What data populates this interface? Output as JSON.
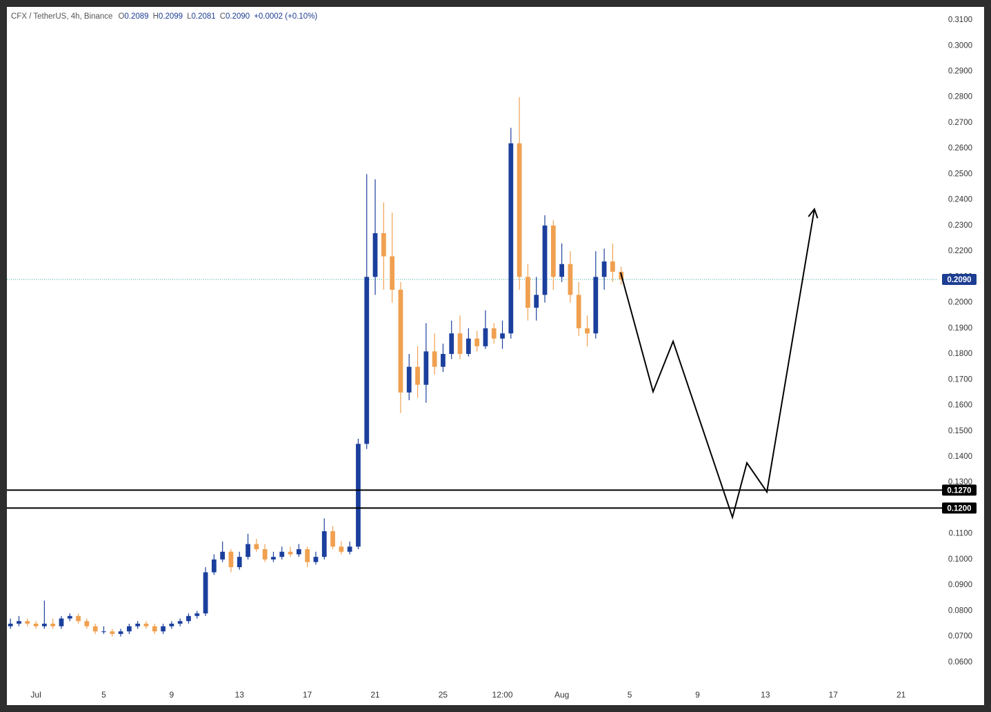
{
  "chart_data": {
    "type": "candlestick",
    "header": {
      "symbol": "CFX / TetherUS, 4h, Binance",
      "fields": [
        {
          "key": "O",
          "value": "0.2089"
        },
        {
          "key": "H",
          "value": "0.2099"
        },
        {
          "key": "L",
          "value": "0.2081"
        },
        {
          "key": "C",
          "value": "0.2090"
        }
      ],
      "change": "+0.0002 (+0.10%)"
    },
    "up_color": "#1b3f9c",
    "down_color": "#f0a050",
    "x": [
      -0.5,
      0,
      0.5,
      1,
      1.5,
      2,
      2.5,
      3,
      3.5,
      4,
      4.5,
      5,
      5.5,
      6,
      6.5,
      7,
      7.5,
      8,
      8.5,
      9,
      9.5,
      10,
      10.5,
      11,
      11.5,
      12,
      12.5,
      13,
      13.5,
      14,
      14.5,
      15,
      15.5,
      16,
      16.5,
      17,
      17.5,
      18,
      18.5,
      19,
      19.5,
      20,
      20.5,
      21,
      21.5,
      22,
      22.5,
      23,
      23.5,
      24,
      24.5,
      25,
      25.5,
      26,
      26.5,
      27,
      27.5,
      28,
      28.5,
      29,
      29.5,
      30,
      30.5,
      31,
      31.5,
      32,
      32.5,
      33,
      33.5,
      34,
      34.5,
      35,
      35.5
    ],
    "open": [
      0.074,
      0.075,
      0.076,
      0.075,
      0.074,
      0.075,
      0.074,
      0.077,
      0.078,
      0.076,
      0.074,
      0.072,
      0.072,
      0.071,
      0.072,
      0.074,
      0.075,
      0.074,
      0.072,
      0.074,
      0.075,
      0.076,
      0.078,
      0.079,
      0.095,
      0.1,
      0.103,
      0.097,
      0.101,
      0.106,
      0.104,
      0.1,
      0.101,
      0.103,
      0.102,
      0.104,
      0.099,
      0.101,
      0.111,
      0.105,
      0.103,
      0.105,
      0.145,
      0.21,
      0.227,
      0.218,
      0.205,
      0.165,
      0.175,
      0.168,
      0.181,
      0.175,
      0.18,
      0.188,
      0.18,
      0.186,
      0.183,
      0.19,
      0.186,
      0.188,
      0.262,
      0.21,
      0.198,
      0.203,
      0.23,
      0.21,
      0.215,
      0.203,
      0.19,
      0.188,
      0.21,
      0.216,
      0.212
    ],
    "high": [
      0.077,
      0.078,
      0.077,
      0.076,
      0.084,
      0.077,
      0.078,
      0.079,
      0.079,
      0.077,
      0.075,
      0.074,
      0.073,
      0.073,
      0.075,
      0.076,
      0.076,
      0.075,
      0.075,
      0.076,
      0.077,
      0.079,
      0.08,
      0.097,
      0.102,
      0.107,
      0.104,
      0.103,
      0.11,
      0.108,
      0.106,
      0.103,
      0.105,
      0.105,
      0.106,
      0.105,
      0.103,
      0.116,
      0.113,
      0.107,
      0.107,
      0.147,
      0.25,
      0.248,
      0.239,
      0.235,
      0.208,
      0.18,
      0.183,
      0.192,
      0.188,
      0.184,
      0.193,
      0.195,
      0.19,
      0.189,
      0.197,
      0.192,
      0.193,
      0.268,
      0.28,
      0.215,
      0.21,
      0.234,
      0.232,
      0.223,
      0.22,
      0.208,
      0.195,
      0.22,
      0.221,
      0.223,
      0.214
    ],
    "low": [
      0.073,
      0.074,
      0.074,
      0.073,
      0.073,
      0.073,
      0.073,
      0.076,
      0.075,
      0.073,
      0.071,
      0.071,
      0.07,
      0.07,
      0.071,
      0.073,
      0.073,
      0.071,
      0.071,
      0.073,
      0.074,
      0.075,
      0.077,
      0.078,
      0.094,
      0.099,
      0.095,
      0.096,
      0.1,
      0.103,
      0.099,
      0.099,
      0.1,
      0.101,
      0.101,
      0.097,
      0.098,
      0.1,
      0.104,
      0.102,
      0.102,
      0.104,
      0.143,
      0.203,
      0.205,
      0.2,
      0.157,
      0.162,
      0.163,
      0.161,
      0.172,
      0.173,
      0.178,
      0.178,
      0.179,
      0.181,
      0.182,
      0.184,
      0.182,
      0.186,
      0.205,
      0.193,
      0.193,
      0.2,
      0.205,
      0.208,
      0.2,
      0.187,
      0.183,
      0.186,
      0.205,
      0.208,
      0.207
    ],
    "close": [
      0.075,
      0.076,
      0.075,
      0.074,
      0.075,
      0.074,
      0.077,
      0.078,
      0.076,
      0.074,
      0.072,
      0.072,
      0.071,
      0.072,
      0.074,
      0.075,
      0.074,
      0.072,
      0.074,
      0.075,
      0.076,
      0.078,
      0.079,
      0.095,
      0.1,
      0.103,
      0.097,
      0.101,
      0.106,
      0.104,
      0.1,
      0.101,
      0.103,
      0.102,
      0.104,
      0.099,
      0.101,
      0.111,
      0.105,
      0.103,
      0.105,
      0.145,
      0.21,
      0.227,
      0.218,
      0.205,
      0.165,
      0.175,
      0.168,
      0.181,
      0.175,
      0.18,
      0.188,
      0.18,
      0.186,
      0.183,
      0.19,
      0.186,
      0.188,
      0.262,
      0.21,
      0.198,
      0.203,
      0.23,
      0.21,
      0.215,
      0.203,
      0.19,
      0.188,
      0.21,
      0.216,
      0.212,
      0.209
    ],
    "xlim": [
      -0.71,
      54.17
    ],
    "ylim": [
      0.0519,
      0.3151
    ],
    "xticks": [
      {
        "value": 1,
        "label": "Jul"
      },
      5,
      9,
      13,
      17,
      21,
      25,
      {
        "value": 28.5,
        "label": "12:00"
      },
      {
        "value": 32,
        "label": "Aug"
      },
      {
        "value": 36,
        "label": "5"
      },
      {
        "value": 40,
        "label": "9"
      },
      {
        "value": 44,
        "label": "13"
      },
      {
        "value": 48,
        "label": "17"
      },
      {
        "value": 52,
        "label": "21"
      }
    ],
    "yticks": [
      {
        "value": 0.06,
        "label": "0.0600"
      },
      {
        "value": 0.07,
        "label": "0.0700"
      },
      {
        "value": 0.08,
        "label": "0.0800"
      },
      {
        "value": 0.09,
        "label": "0.0900"
      },
      {
        "value": 0.1,
        "label": "0.1000"
      },
      {
        "value": 0.11,
        "label": "0.1100"
      },
      {
        "value": 0.12,
        "label": "0.1200"
      },
      {
        "value": 0.13,
        "label": "0.1300"
      },
      {
        "value": 0.14,
        "label": "0.1400"
      },
      {
        "value": 0.15,
        "label": "0.1500"
      },
      {
        "value": 0.16,
        "label": "0.1600"
      },
      {
        "value": 0.17,
        "label": "0.1700"
      },
      {
        "value": 0.18,
        "label": "0.1800"
      },
      {
        "value": 0.19,
        "label": "0.1900"
      },
      {
        "value": 0.2,
        "label": "0.2000"
      },
      {
        "value": 0.21,
        "label": "0.2100"
      },
      {
        "value": 0.22,
        "label": "0.2200"
      },
      {
        "value": 0.23,
        "label": "0.2300"
      },
      {
        "value": 0.24,
        "label": "0.2400"
      },
      {
        "value": 0.25,
        "label": "0.2500"
      },
      {
        "value": 0.26,
        "label": "0.2600"
      },
      {
        "value": 0.27,
        "label": "0.2700"
      },
      {
        "value": 0.28,
        "label": "0.2800"
      },
      {
        "value": 0.29,
        "label": "0.2900"
      },
      {
        "value": 0.3,
        "label": "0.3000"
      },
      {
        "value": 0.31,
        "label": "0.3100"
      }
    ],
    "grid": false,
    "last_price": {
      "value": 0.209,
      "label": "0.2090",
      "color": "#1c3d92"
    },
    "price_lines": [
      {
        "value": 0.127,
        "label": "0.1270"
      },
      {
        "value": 0.12,
        "label": "0.1200"
      }
    ],
    "projection": {
      "x": [
        35.47,
        37.38,
        38.56,
        42.06,
        42.91,
        44.09,
        46.89
      ],
      "values": [
        0.2117,
        0.1653,
        0.1849,
        0.1164,
        0.1376,
        0.1263,
        0.2364
      ]
    }
  }
}
